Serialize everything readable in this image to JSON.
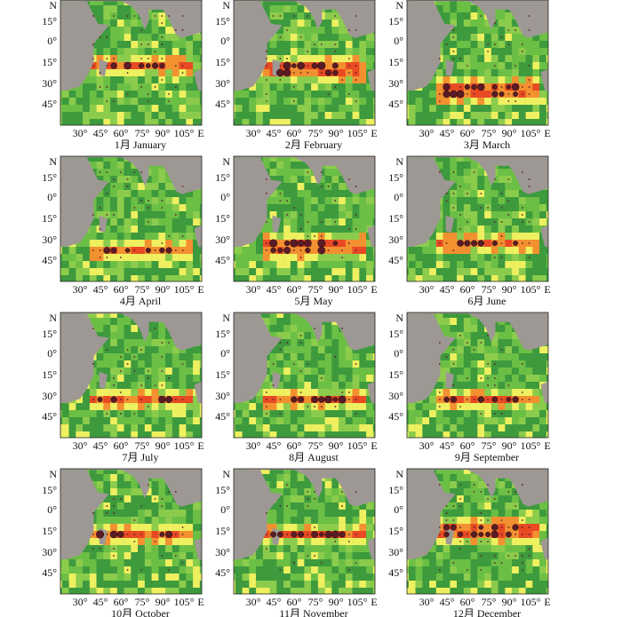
{
  "panels": [
    {
      "caption": "1月 January"
    },
    {
      "caption": "2月 February"
    },
    {
      "caption": "3月 March"
    },
    {
      "caption": "4月 April"
    },
    {
      "caption": "5月 May"
    },
    {
      "caption": "6月 June"
    },
    {
      "caption": "7月 July"
    },
    {
      "caption": "8月 August"
    },
    {
      "caption": "9月 September"
    },
    {
      "caption": "10月 October"
    },
    {
      "caption": "11月 November"
    },
    {
      "caption": "12月 December"
    }
  ],
  "y_axis_labels": [
    "N",
    "15°",
    "0°",
    "15°",
    "30°",
    "45°"
  ],
  "x_axis_labels": [
    "30°",
    "45°",
    "60°",
    "75°",
    "90°",
    "105°",
    "E"
  ]
}
